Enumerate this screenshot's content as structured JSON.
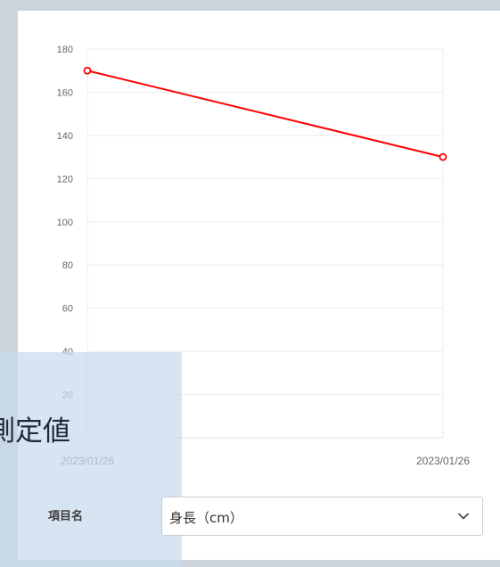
{
  "chart_data": {
    "type": "line",
    "x": [
      "2023/01/26",
      "2023/01/26"
    ],
    "series": [
      {
        "values": [
          170,
          130
        ],
        "color": "#ff0000"
      }
    ],
    "ylim": [
      0,
      180
    ],
    "yticks": [
      20,
      40,
      60,
      80,
      100,
      120,
      140,
      160,
      180
    ],
    "ytick_labels": [
      "20",
      "40",
      "60",
      "80",
      "100",
      "120",
      "140",
      "160",
      "180"
    ],
    "xtick_labels": [
      "2023/01/26",
      "2023/01/26"
    ],
    "grid": true
  },
  "overlay": {
    "title": "測定値"
  },
  "form": {
    "item_label": "項目名",
    "selected_item": "身長（cm）",
    "chevron_icon": "chevron-down-icon"
  }
}
